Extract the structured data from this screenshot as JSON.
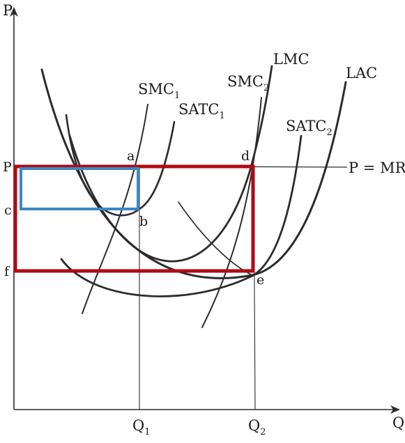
{
  "axes": {
    "y_label": "P",
    "x_label": "Q",
    "q1": {
      "main": "Q",
      "sub": "1"
    },
    "q2": {
      "main": "Q",
      "sub": "2"
    }
  },
  "price_labels": {
    "p": "P",
    "c": "c",
    "f": "f"
  },
  "points": {
    "a": "a",
    "b": "b",
    "d": "d",
    "e": "e"
  },
  "curves": {
    "smc1": {
      "main": "SMC",
      "sub": "1"
    },
    "satc1": {
      "main": "SATC",
      "sub": "1"
    },
    "smc2": {
      "main": "SMC",
      "sub": "2"
    },
    "lmc": {
      "main": "LMC",
      "sub": ""
    },
    "lac": {
      "main": "LAC",
      "sub": ""
    },
    "satc2": {
      "main": "SATC",
      "sub": "2"
    },
    "price_line": {
      "main": "P = MR",
      "sub": ""
    }
  },
  "colors": {
    "ink": "#2b2b2b",
    "profit_box_red": "#b00a12",
    "profit_box_blue": "#3d86c6"
  }
}
